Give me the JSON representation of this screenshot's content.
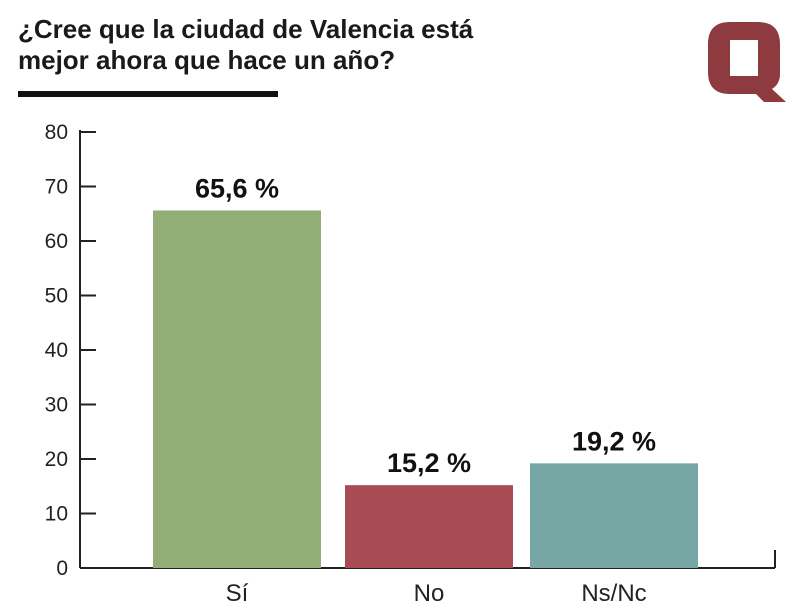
{
  "header": {
    "title_line1": "¿Cree que la ciudad de Valencia está",
    "title_line2": "mejor ahora que hace un año?"
  },
  "logo": {
    "icon": "q-logo-icon",
    "color": "#8e3b3f"
  },
  "chart_data": {
    "type": "bar",
    "title": "¿Cree que la ciudad de Valencia está mejor ahora que hace un año?",
    "categories": [
      "Sí",
      "No",
      "Ns/Nc"
    ],
    "values": [
      65.6,
      15.2,
      19.2
    ],
    "data_labels": [
      "65,6 %",
      "15,2 %",
      "19,2 %"
    ],
    "colors": [
      "#93ad76",
      "#a84b53",
      "#76a7a5"
    ],
    "yticks": [
      0,
      10,
      20,
      30,
      40,
      50,
      60,
      70,
      80
    ],
    "ylim": [
      0,
      80
    ],
    "xlabel": "",
    "ylabel": "",
    "grid": false,
    "legend": "none"
  }
}
